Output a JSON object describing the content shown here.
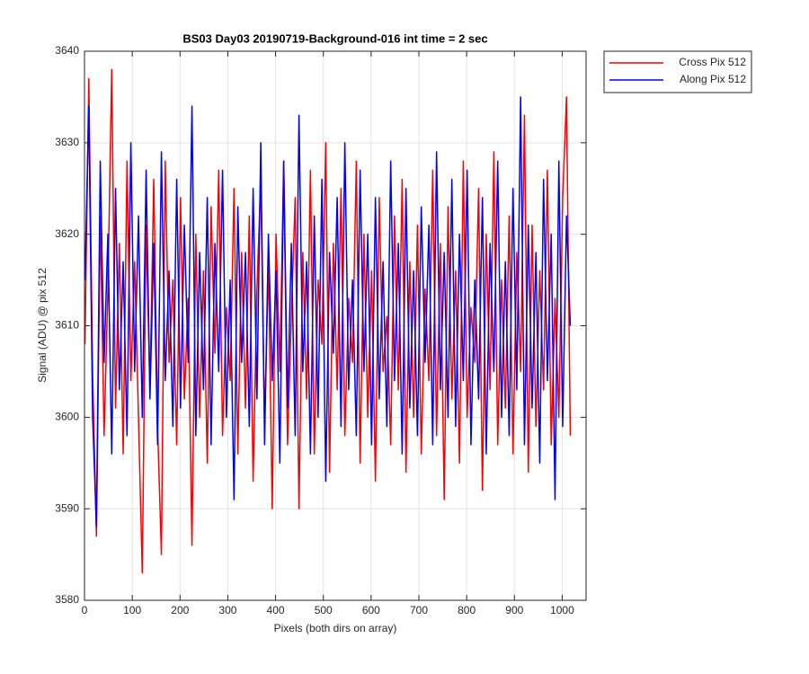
{
  "chart_data": {
    "type": "line",
    "title": "BS03 Day03 20190719-Background-016 int time = 2 sec",
    "xlabel": "Pixels (both dirs on array)",
    "ylabel": "Signal (ADU) @ pix 512",
    "xlim": [
      0,
      1050
    ],
    "ylim": [
      3580,
      3640
    ],
    "xticks": [
      0,
      100,
      200,
      300,
      400,
      500,
      600,
      700,
      800,
      900,
      1000
    ],
    "yticks": [
      3580,
      3590,
      3600,
      3610,
      3620,
      3630,
      3640
    ],
    "grid": true,
    "legend": "outside-top-right",
    "x": [
      1,
      9,
      17,
      25,
      33,
      41,
      49,
      57,
      65,
      73,
      81,
      89,
      97,
      105,
      113,
      121,
      129,
      137,
      145,
      153,
      161,
      169,
      177,
      185,
      193,
      201,
      209,
      217,
      225,
      233,
      241,
      249,
      257,
      265,
      273,
      281,
      289,
      297,
      305,
      313,
      321,
      329,
      337,
      345,
      353,
      361,
      369,
      377,
      385,
      393,
      401,
      409,
      417,
      425,
      433,
      441,
      449,
      457,
      465,
      473,
      481,
      489,
      497,
      505,
      513,
      521,
      529,
      537,
      545,
      553,
      561,
      569,
      577,
      585,
      593,
      601,
      609,
      617,
      625,
      633,
      641,
      649,
      657,
      665,
      673,
      681,
      689,
      697,
      705,
      713,
      721,
      729,
      737,
      745,
      753,
      761,
      769,
      777,
      785,
      793,
      801,
      809,
      817,
      825,
      833,
      841,
      849,
      857,
      865,
      873,
      881,
      889,
      897,
      905,
      913,
      921,
      929,
      937,
      945,
      953,
      961,
      969,
      977,
      985,
      993,
      1001,
      1009,
      1017
    ],
    "series": [
      {
        "name": "Cross Pix 512",
        "color": "#ff0000",
        "values": [
          3608,
          3637,
          3605,
          3587,
          3622,
          3598,
          3614,
          3638,
          3601,
          3619,
          3596,
          3628,
          3604,
          3617,
          3600,
          3583,
          3621,
          3603,
          3626,
          3599,
          3585,
          3628,
          3606,
          3615,
          3597,
          3624,
          3602,
          3613,
          3586,
          3620,
          3600,
          3616,
          3595,
          3623,
          3607,
          3627,
          3598,
          3612,
          3604,
          3625,
          3596,
          3618,
          3601,
          3622,
          3593,
          3614,
          3626,
          3599,
          3617,
          3590,
          3620,
          3605,
          3628,
          3597,
          3611,
          3624,
          3590,
          3618,
          3602,
          3627,
          3596,
          3615,
          3608,
          3630,
          3594,
          3619,
          3603,
          3625,
          3598,
          3613,
          3606,
          3628,
          3595,
          3620,
          3600,
          3616,
          3593,
          3624,
          3605,
          3611,
          3597,
          3622,
          3603,
          3626,
          3594,
          3617,
          3600,
          3621,
          3596,
          3614,
          3604,
          3627,
          3598,
          3619,
          3591,
          3623,
          3602,
          3616,
          3595,
          3628,
          3600,
          3612,
          3606,
          3625,
          3592,
          3620,
          3603,
          3629,
          3597,
          3615,
          3601,
          3622,
          3596,
          3618,
          3605,
          3633,
          3594,
          3621,
          3599,
          3616,
          3603,
          3627,
          3597,
          3613,
          3600,
          3624,
          3635,
          3598
        ]
      },
      {
        "name": "Along Pix 512",
        "color": "#0000ff",
        "values": [
          3615,
          3634,
          3600,
          3588,
          3628,
          3606,
          3620,
          3596,
          3625,
          3603,
          3617,
          3598,
          3630,
          3605,
          3622,
          3600,
          3627,
          3602,
          3619,
          3597,
          3629,
          3604,
          3616,
          3599,
          3626,
          3601,
          3621,
          3606,
          3634,
          3598,
          3618,
          3603,
          3624,
          3597,
          3619,
          3605,
          3627,
          3600,
          3615,
          3591,
          3623,
          3606,
          3618,
          3599,
          3625,
          3602,
          3630,
          3597,
          3620,
          3604,
          3616,
          3595,
          3628,
          3601,
          3619,
          3598,
          3633,
          3605,
          3617,
          3596,
          3622,
          3600,
          3626,
          3593,
          3618,
          3607,
          3624,
          3599,
          3630,
          3603,
          3615,
          3598,
          3627,
          3605,
          3620,
          3597,
          3624,
          3602,
          3617,
          3599,
          3628,
          3604,
          3619,
          3596,
          3625,
          3601,
          3616,
          3598,
          3623,
          3606,
          3621,
          3597,
          3629,
          3603,
          3618,
          3600,
          3626,
          3599,
          3620,
          3604,
          3627,
          3597,
          3615,
          3602,
          3624,
          3596,
          3619,
          3605,
          3628,
          3600,
          3617,
          3598,
          3625,
          3603,
          3635,
          3597,
          3621,
          3601,
          3618,
          3595,
          3626,
          3604,
          3620,
          3591,
          3628,
          3599,
          3622,
          3610
        ]
      }
    ]
  }
}
